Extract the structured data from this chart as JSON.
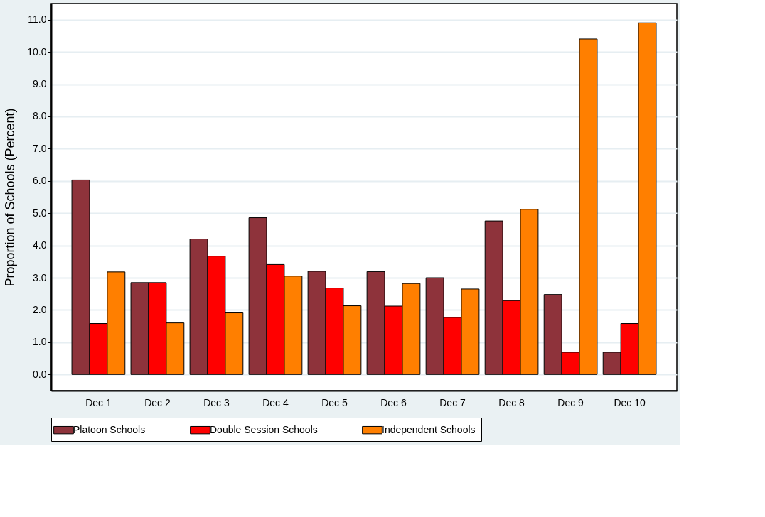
{
  "chart_data": {
    "type": "bar",
    "ylabel": "Proportion of Schools (Percent)",
    "categories": [
      "Dec 1",
      "Dec 2",
      "Dec 3",
      "Dec 4",
      "Dec 5",
      "Dec 6",
      "Dec 7",
      "Dec 8",
      "Dec 9",
      "Dec 10"
    ],
    "series": [
      {
        "name": "Platoon Schools",
        "color": "#8e333b",
        "values": [
          6.03,
          2.85,
          4.2,
          4.86,
          3.2,
          3.19,
          3.0,
          4.76,
          2.48,
          0.69
        ]
      },
      {
        "name": "Double Session Schools",
        "color": "#ff0000",
        "values": [
          1.58,
          2.85,
          3.67,
          3.41,
          2.68,
          2.12,
          1.77,
          2.29,
          0.69,
          1.58
        ]
      },
      {
        "name": "Independent Schools",
        "color": "#ff7f00",
        "values": [
          3.18,
          1.6,
          1.91,
          3.05,
          2.13,
          2.82,
          2.65,
          5.12,
          10.4,
          10.9
        ]
      }
    ],
    "ylim": [
      -0.5,
      11.5
    ],
    "yticks": [
      {
        "value": 0,
        "label": "0.0"
      },
      {
        "value": 1,
        "label": "1.0"
      },
      {
        "value": 2,
        "label": "2.0"
      },
      {
        "value": 3,
        "label": "3.0"
      },
      {
        "value": 4,
        "label": "4.0"
      },
      {
        "value": 5,
        "label": "5.0"
      },
      {
        "value": 6,
        "label": "6.0"
      },
      {
        "value": 7,
        "label": "7.0"
      },
      {
        "value": 8,
        "label": "8.0"
      },
      {
        "value": 9,
        "label": "9.0"
      },
      {
        "value": 10,
        "label": "10.0"
      },
      {
        "value": 11,
        "label": "11.0"
      }
    ],
    "grid": "y",
    "legend": "bottom"
  }
}
